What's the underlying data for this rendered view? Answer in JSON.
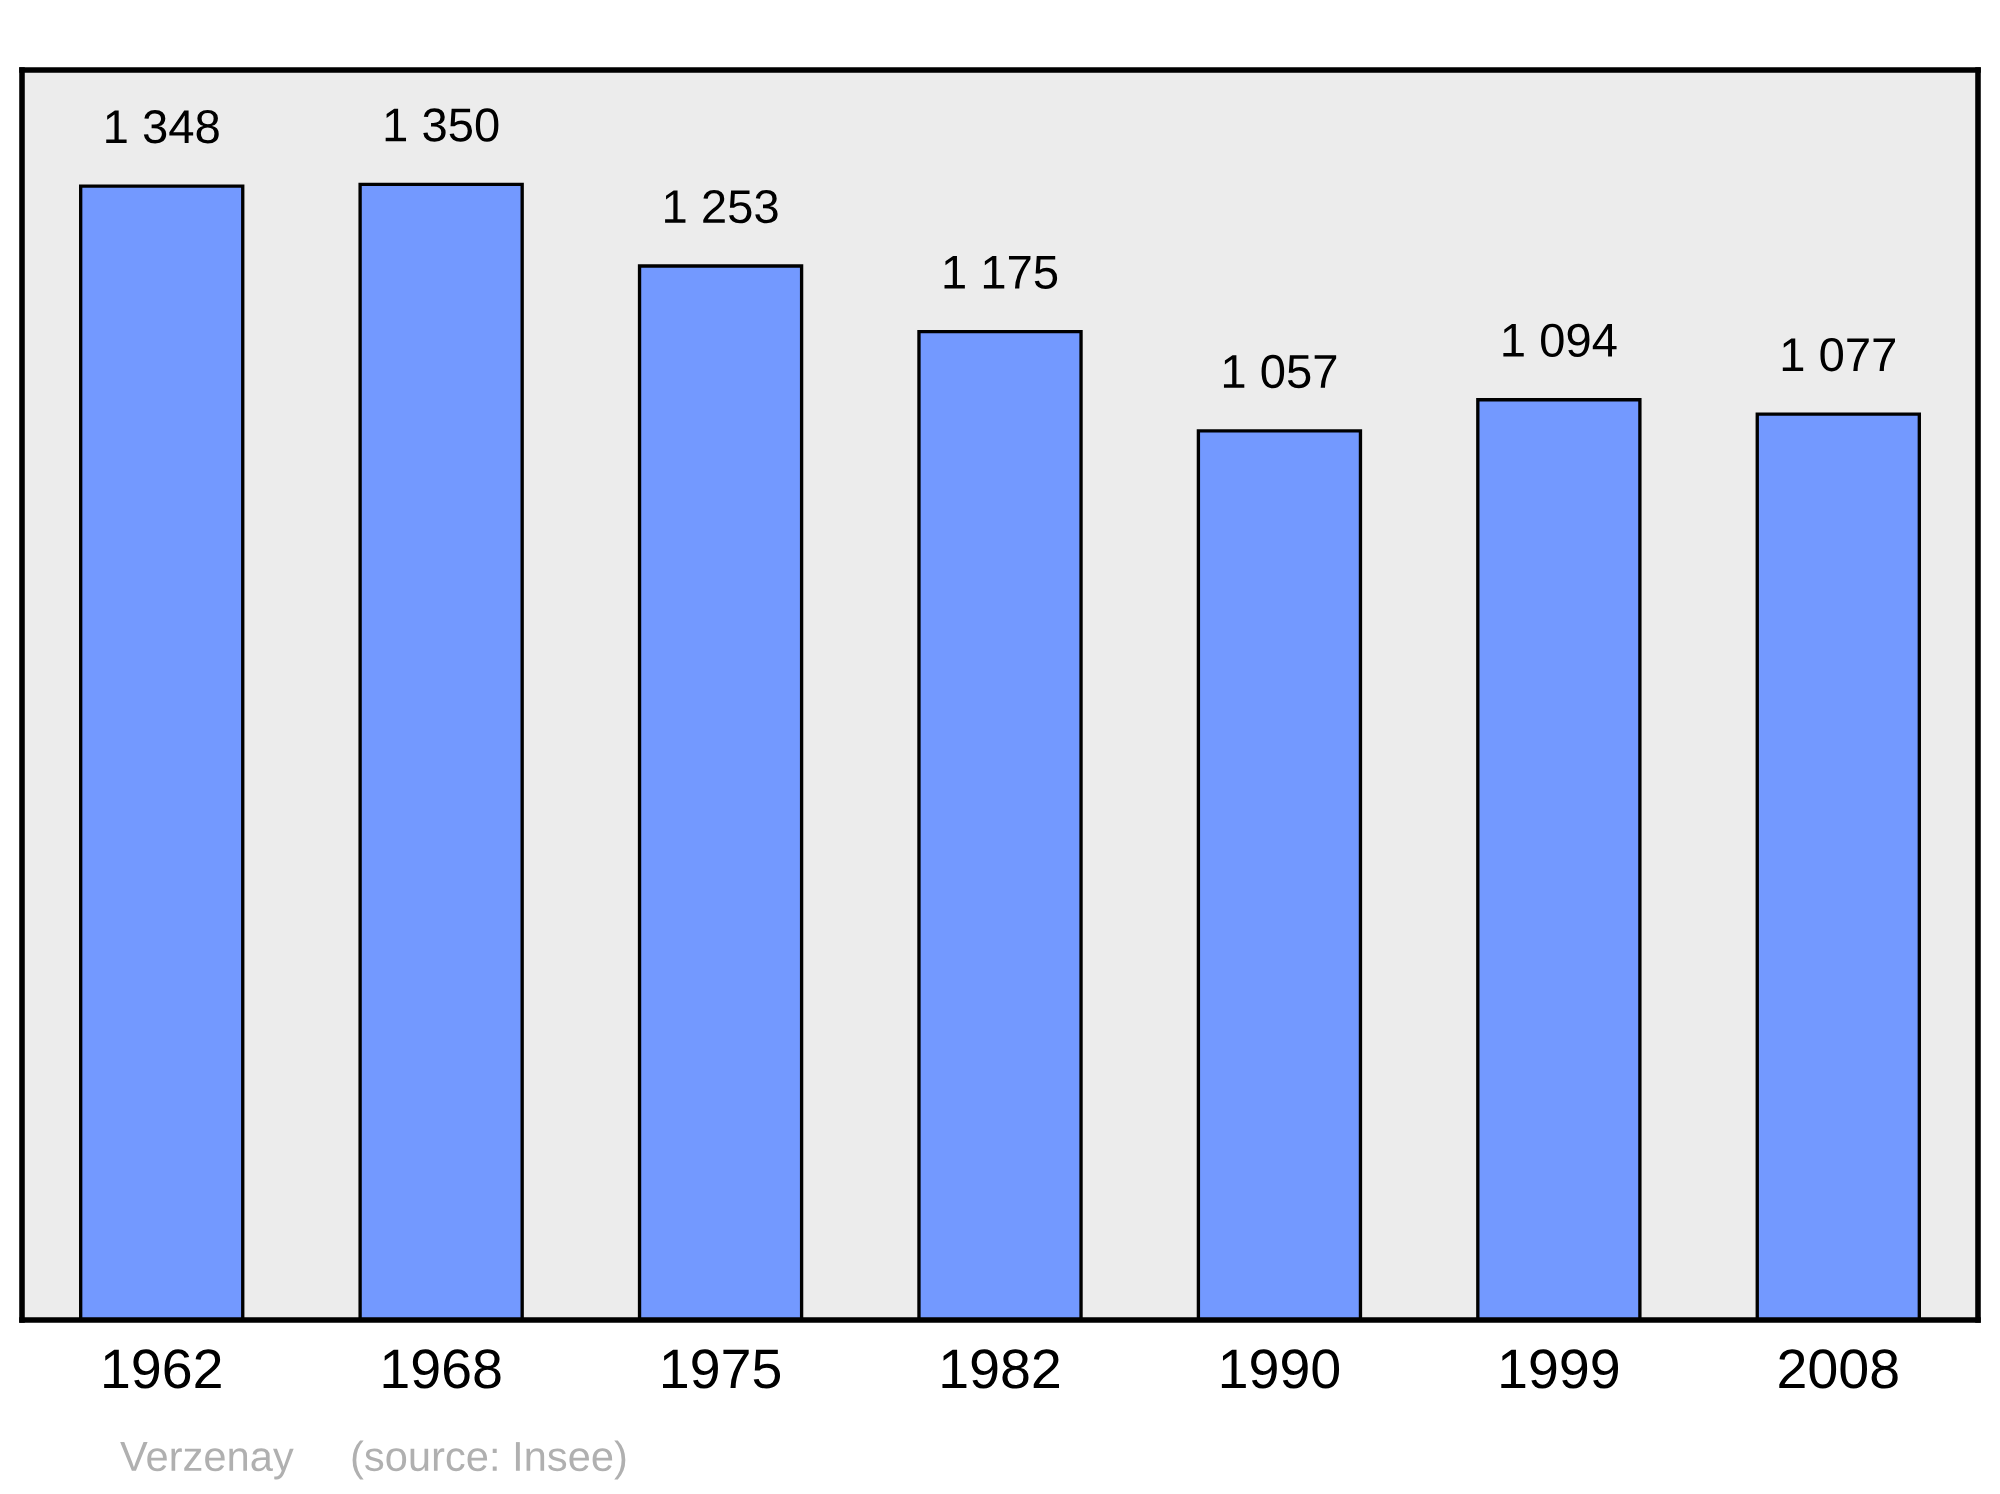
{
  "chart_data": {
    "type": "bar",
    "categories": [
      "1962",
      "1968",
      "1975",
      "1982",
      "1990",
      "1999",
      "2008"
    ],
    "values": [
      1348,
      1350,
      1253,
      1175,
      1057,
      1094,
      1077
    ],
    "value_labels": [
      "1 348",
      "1 350",
      "1 253",
      "1 175",
      "1 057",
      "1 094",
      "1 077"
    ],
    "color": "#7399ff",
    "ylim": [
      0,
      1486
    ],
    "tick_labels": "x",
    "grid": false,
    "annotations": [
      "Verzenay",
      "(source: Insee)"
    ]
  }
}
